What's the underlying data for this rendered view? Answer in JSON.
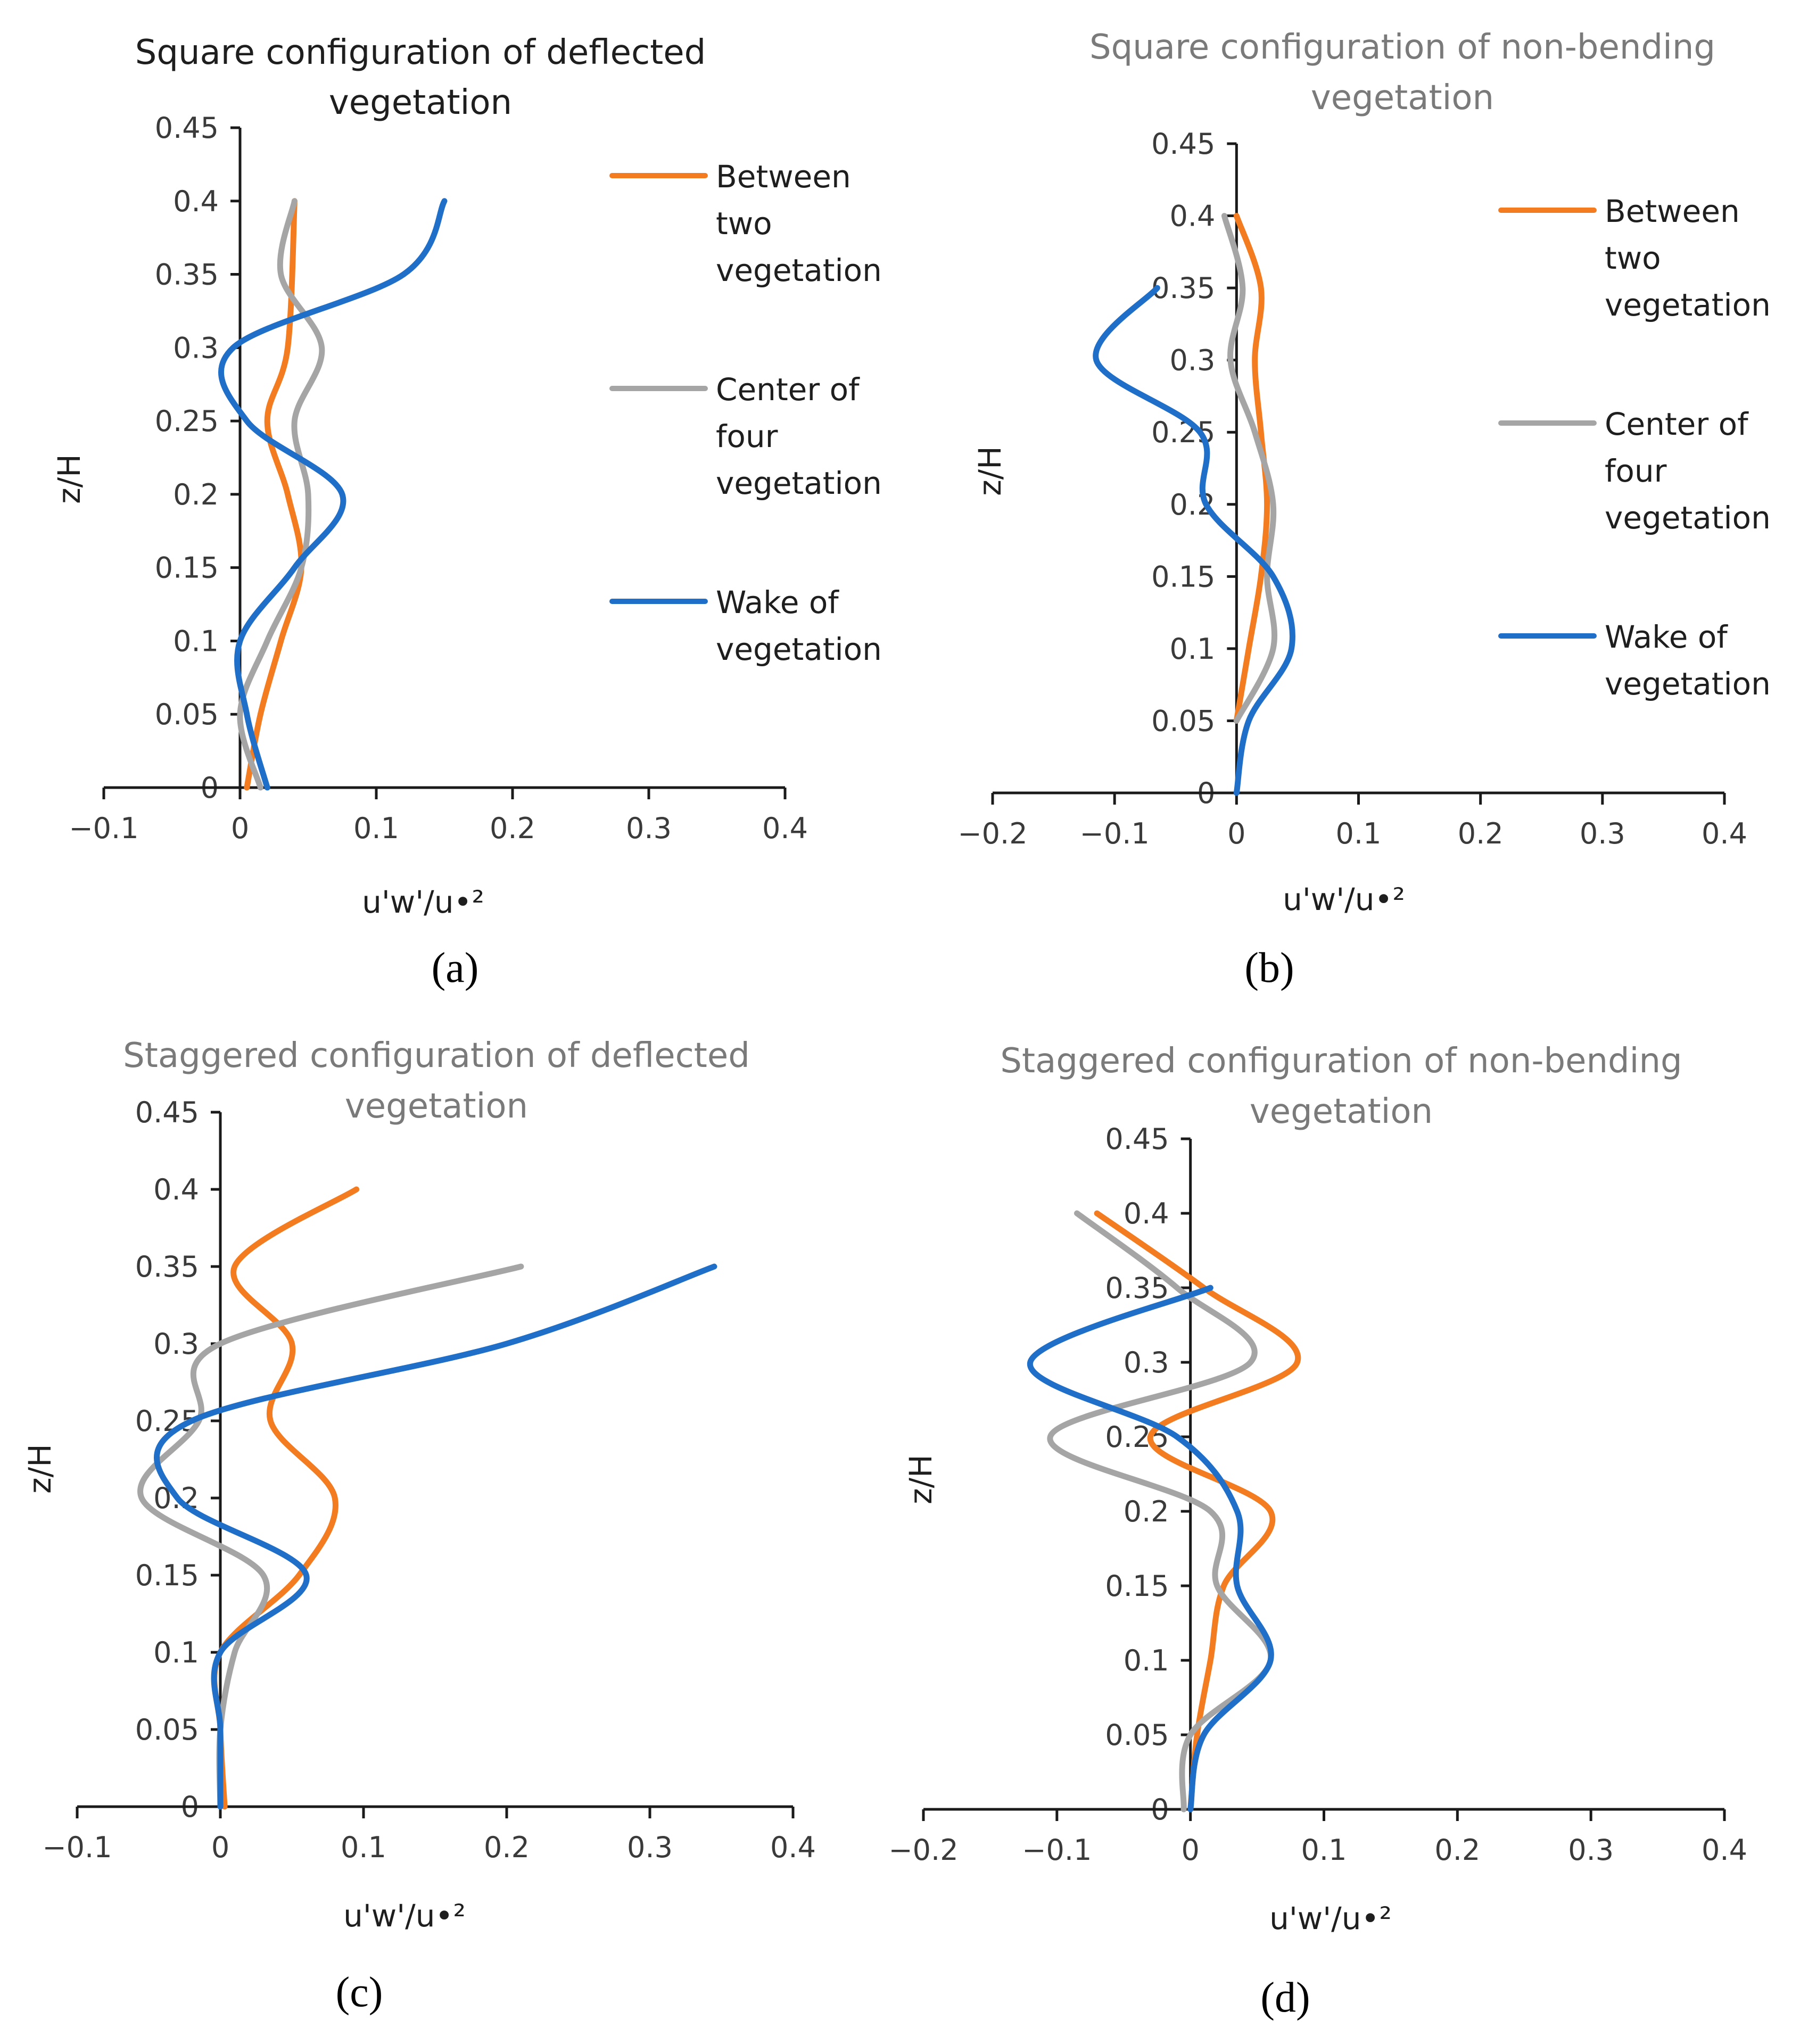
{
  "figure": {
    "background": "#ffffff",
    "series_colors": {
      "Between two vegetation": "#f47c20",
      "Center of four vegetation": "#a5a5a5",
      "Wake of vegetation": "#1f6fc9"
    }
  },
  "chart_data": [
    {
      "id": "a",
      "type": "line",
      "panel_label": "(a)",
      "title_lines": [
        "Square configuration of deflected",
        "vegetation"
      ],
      "xlabel": "u'w'/u•²",
      "ylabel": "z/H",
      "xlim": [
        -0.1,
        0.4
      ],
      "ylim": [
        0,
        0.45
      ],
      "xticks": [
        -0.1,
        0,
        0.1,
        0.2,
        0.3,
        0.4
      ],
      "xtick_labels": [
        "−0.1",
        "0",
        "0.1",
        "0.2",
        "0.3",
        "0.4"
      ],
      "yticks": [
        0,
        0.05,
        0.1,
        0.15,
        0.2,
        0.25,
        0.3,
        0.35,
        0.4,
        0.45
      ],
      "ytick_labels": [
        "0",
        "0.05",
        "0.1",
        "0.15",
        "0.2",
        "0.25",
        "0.3",
        "0.35",
        "0.4",
        "0.45"
      ],
      "legend_position": "right",
      "legend": [
        {
          "series": "Between two vegetation",
          "lines": [
            "Between",
            "two",
            "vegetation"
          ]
        },
        {
          "series": "Center of four vegetation",
          "lines": [
            "Center of",
            "four",
            "vegetation"
          ]
        },
        {
          "series": "Wake of vegetation",
          "lines": [
            "Wake of",
            "vegetation"
          ]
        }
      ],
      "series": [
        {
          "name": "Between two vegetation",
          "x": [
            0.005,
            0.015,
            0.03,
            0.045,
            0.035,
            0.02,
            0.035,
            0.04
          ],
          "z": [
            0,
            0.05,
            0.1,
            0.15,
            0.2,
            0.25,
            0.3,
            0.4
          ]
        },
        {
          "name": "Center of four vegetation",
          "x": [
            0.015,
            0.0,
            0.02,
            0.045,
            0.05,
            0.04,
            0.06,
            0.03,
            0.04
          ],
          "z": [
            0,
            0.05,
            0.1,
            0.15,
            0.2,
            0.25,
            0.3,
            0.35,
            0.4
          ]
        },
        {
          "name": "Wake of vegetation",
          "x": [
            0.02,
            0.005,
            0.0,
            0.04,
            0.075,
            0.005,
            -0.005,
            0.12,
            0.15
          ],
          "z": [
            0,
            0.05,
            0.1,
            0.15,
            0.2,
            0.25,
            0.3,
            0.35,
            0.4
          ]
        }
      ]
    },
    {
      "id": "b",
      "type": "line",
      "panel_label": "(b)",
      "title_lines": [
        "Square configuration of non-bending",
        "vegetation"
      ],
      "xlabel": "u'w'/u•²",
      "ylabel": "z/H",
      "xlim": [
        -0.2,
        0.4
      ],
      "ylim": [
        0,
        0.45
      ],
      "xticks": [
        -0.2,
        -0.1,
        0,
        0.1,
        0.2,
        0.3,
        0.4
      ],
      "xtick_labels": [
        "−0.2",
        "−0.1",
        "0",
        "0.1",
        "0.2",
        "0.3",
        "0.4"
      ],
      "yticks": [
        0,
        0.05,
        0.1,
        0.15,
        0.2,
        0.25,
        0.3,
        0.35,
        0.4,
        0.45
      ],
      "ytick_labels": [
        "0",
        "0.05",
        "0.1",
        "0.15",
        "0.2",
        "0.25",
        "0.3",
        "0.35",
        "0.4",
        "0.45"
      ],
      "legend_position": "right",
      "legend": [
        {
          "series": "Between two vegetation",
          "lines": [
            "Between",
            "two",
            "vegetation"
          ]
        },
        {
          "series": "Center of four vegetation",
          "lines": [
            "Center of",
            "four",
            "vegetation"
          ]
        },
        {
          "series": "Wake of vegetation",
          "lines": [
            "Wake of",
            "vegetation"
          ]
        }
      ],
      "series": [
        {
          "name": "Between two vegetation",
          "x": [
            0.0,
            0.01,
            0.02,
            0.025,
            0.02,
            0.015,
            0.02,
            0.0
          ],
          "z": [
            0.05,
            0.1,
            0.15,
            0.2,
            0.25,
            0.3,
            0.35,
            0.4
          ]
        },
        {
          "name": "Center of four vegetation",
          "x": [
            0.0,
            0.03,
            0.025,
            0.03,
            0.015,
            -0.005,
            0.005,
            -0.01
          ],
          "z": [
            0.05,
            0.1,
            0.15,
            0.2,
            0.25,
            0.3,
            0.35,
            0.4
          ]
        },
        {
          "name": "Wake of vegetation",
          "x": [
            0.0,
            0.01,
            0.045,
            0.03,
            -0.025,
            -0.03,
            -0.115,
            -0.065
          ],
          "z": [
            0,
            0.05,
            0.1,
            0.15,
            0.2,
            0.25,
            0.3,
            0.35
          ]
        }
      ]
    },
    {
      "id": "c",
      "type": "line",
      "panel_label": "(c)",
      "title_lines": [
        "Staggered configuration of deflected",
        "vegetation"
      ],
      "xlabel": "u'w'/u•²",
      "ylabel": "z/H",
      "xlim": [
        -0.1,
        0.4
      ],
      "ylim": [
        0,
        0.45
      ],
      "xticks": [
        -0.1,
        0,
        0.1,
        0.2,
        0.3,
        0.4
      ],
      "xtick_labels": [
        "−0.1",
        "0",
        "0.1",
        "0.2",
        "0.3",
        "0.4"
      ],
      "yticks": [
        0,
        0.05,
        0.1,
        0.15,
        0.2,
        0.25,
        0.3,
        0.35,
        0.4,
        0.45
      ],
      "ytick_labels": [
        "0",
        "0.05",
        "0.1",
        "0.15",
        "0.2",
        "0.25",
        "0.3",
        "0.35",
        "0.4",
        "0.45"
      ],
      "series": [
        {
          "name": "Between two vegetation",
          "x": [
            0.003,
            0.0,
            0.0,
            0.055,
            0.08,
            0.035,
            0.05,
            0.01,
            0.095
          ],
          "z": [
            0,
            0.05,
            0.1,
            0.15,
            0.2,
            0.25,
            0.3,
            0.35,
            0.4
          ]
        },
        {
          "name": "Center of four vegetation",
          "x": [
            0.0,
            0.0,
            0.01,
            0.03,
            -0.055,
            -0.015,
            0.0,
            0.21
          ],
          "z": [
            0,
            0.05,
            0.1,
            0.15,
            0.2,
            0.25,
            0.3,
            0.35
          ]
        },
        {
          "name": "Wake of vegetation",
          "x": [
            0.0,
            0.0,
            0.0,
            0.06,
            -0.03,
            -0.02,
            0.2,
            0.345
          ],
          "z": [
            0,
            0.05,
            0.1,
            0.15,
            0.2,
            0.25,
            0.3,
            0.35
          ]
        }
      ]
    },
    {
      "id": "d",
      "type": "line",
      "panel_label": "(d)",
      "title_lines": [
        "Staggered configuration of non-bending",
        "vegetation"
      ],
      "xlabel": "u'w'/u•²",
      "ylabel": "z/H",
      "xlim": [
        -0.2,
        0.4
      ],
      "ylim": [
        0,
        0.45
      ],
      "xticks": [
        -0.2,
        -0.1,
        0,
        0.1,
        0.2,
        0.3,
        0.4
      ],
      "xtick_labels": [
        "−0.2",
        "−0.1",
        "0",
        "0.1",
        "0.2",
        "0.3",
        "0.4"
      ],
      "yticks": [
        0,
        0.05,
        0.1,
        0.15,
        0.2,
        0.25,
        0.3,
        0.35,
        0.4,
        0.45
      ],
      "ytick_labels": [
        "0",
        "0.05",
        "0.1",
        "0.15",
        "0.2",
        "0.25",
        "0.3",
        "0.35",
        "0.4",
        "0.45"
      ],
      "series": [
        {
          "name": "Between two vegetation",
          "x": [
            0.0,
            0.005,
            0.015,
            0.025,
            0.06,
            -0.03,
            0.08,
            0.01,
            -0.07
          ],
          "z": [
            0,
            0.05,
            0.1,
            0.15,
            0.2,
            0.25,
            0.3,
            0.35,
            0.4
          ]
        },
        {
          "name": "Center of four vegetation",
          "x": [
            -0.005,
            0.0,
            0.06,
            0.02,
            0.015,
            -0.105,
            0.045,
            -0.01,
            -0.085
          ],
          "z": [
            0,
            0.05,
            0.1,
            0.15,
            0.2,
            0.25,
            0.3,
            0.35,
            0.4
          ]
        },
        {
          "name": "Wake of vegetation",
          "x": [
            0.0,
            0.01,
            0.06,
            0.035,
            0.035,
            -0.01,
            -0.12,
            0.015
          ],
          "z": [
            0,
            0.05,
            0.1,
            0.15,
            0.2,
            0.25,
            0.3,
            0.35
          ]
        }
      ]
    }
  ]
}
